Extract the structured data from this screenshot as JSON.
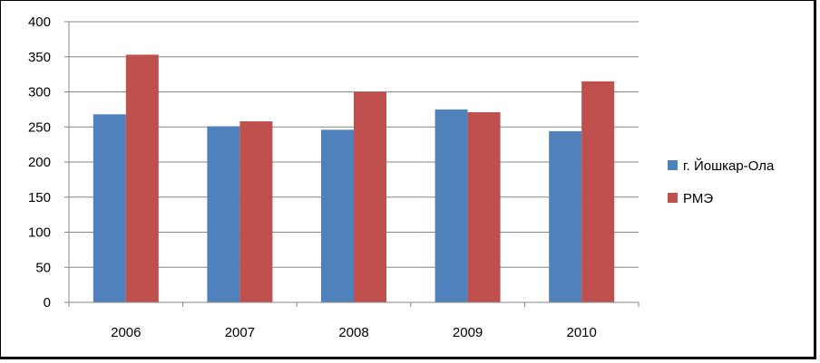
{
  "chart_data": {
    "type": "bar",
    "categories": [
      "2006",
      "2007",
      "2008",
      "2009",
      "2010"
    ],
    "series": [
      {
        "name": "г. Йошкар-Ола",
        "color": "#4F81BD",
        "values": [
          268,
          251,
          246,
          275,
          244
        ]
      },
      {
        "name": "РМЭ",
        "color": "#C0504D",
        "values": [
          353,
          258,
          300,
          271,
          315
        ]
      }
    ],
    "ylim": [
      0,
      400
    ],
    "yticks": [
      0,
      50,
      100,
      150,
      200,
      250,
      300,
      350,
      400
    ],
    "grid": true,
    "legend_position": "right"
  }
}
